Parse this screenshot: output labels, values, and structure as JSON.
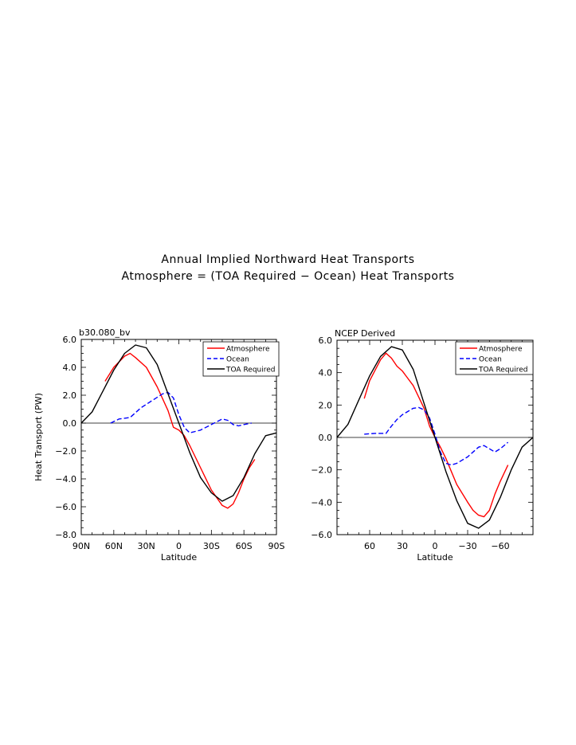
{
  "figure": {
    "title_line1": "Annual Implied Northward Heat Transports",
    "title_line2": "Atmosphere = (TOA Required − Ocean) Heat Transports"
  },
  "chart_data": [
    {
      "type": "line",
      "title": "b30.080_bv",
      "xlabel": "Latitude",
      "ylabel": "Heat Transport (PW)",
      "xlim": [
        90,
        -90
      ],
      "ylim": [
        -8,
        6
      ],
      "xticks": [
        90,
        60,
        30,
        0,
        -30,
        -60,
        -90
      ],
      "xtick_labels": [
        "90N",
        "60N",
        "30N",
        "0",
        "30S",
        "60S",
        "90S"
      ],
      "yticks": [
        6,
        4,
        2,
        0,
        -2,
        -4,
        -6,
        -8
      ],
      "ytick_labels": [
        "6.0",
        "4.0",
        "2.0",
        "0.0",
        "−2.0",
        "−4.0",
        "−6.0",
        "−8.0"
      ],
      "zero_line": true,
      "legend_position": "top-right",
      "series": [
        {
          "name": "Atmosphere",
          "color": "#ff0000",
          "dash": "solid",
          "x": [
            68,
            60,
            50,
            45,
            40,
            30,
            20,
            10,
            5,
            0,
            -5,
            -10,
            -20,
            -30,
            -40,
            -45,
            -50,
            -55,
            -60,
            -65,
            -70
          ],
          "y": [
            3.0,
            4.0,
            4.8,
            5.0,
            4.7,
            4.0,
            2.6,
            0.9,
            -0.3,
            -0.5,
            -0.9,
            -1.6,
            -3.2,
            -4.8,
            -5.9,
            -6.1,
            -5.8,
            -5.0,
            -4.0,
            -3.2,
            -2.6
          ]
        },
        {
          "name": "Ocean",
          "color": "#0000ff",
          "dash": "dashed",
          "x": [
            63,
            55,
            45,
            35,
            25,
            15,
            10,
            5,
            0,
            -5,
            -10,
            -20,
            -30,
            -40,
            -45,
            -50,
            -55,
            -60,
            -67
          ],
          "y": [
            0.0,
            0.3,
            0.4,
            1.1,
            1.6,
            2.1,
            2.2,
            1.8,
            0.6,
            -0.3,
            -0.7,
            -0.5,
            -0.1,
            0.3,
            0.2,
            -0.1,
            -0.2,
            -0.1,
            0.0
          ]
        },
        {
          "name": "TOA Required",
          "color": "#000000",
          "dash": "solid",
          "x": [
            90,
            80,
            70,
            60,
            50,
            40,
            30,
            20,
            10,
            0,
            -10,
            -20,
            -30,
            -40,
            -50,
            -60,
            -70,
            -80,
            -90
          ],
          "y": [
            0.0,
            0.8,
            2.3,
            3.8,
            5.0,
            5.6,
            5.4,
            4.2,
            2.1,
            0.0,
            -2.1,
            -3.9,
            -5.0,
            -5.6,
            -5.2,
            -3.9,
            -2.2,
            -0.9,
            -0.7
          ]
        }
      ]
    },
    {
      "type": "line",
      "title": "NCEP Derived",
      "xlabel": "Latitude",
      "ylabel": "",
      "xlim": [
        90,
        -90
      ],
      "ylim": [
        -6,
        6
      ],
      "xticks": [
        60,
        30,
        0,
        -30,
        -60
      ],
      "xtick_labels": [
        "60",
        "30",
        "0",
        "−30",
        "−60"
      ],
      "yticks": [
        6,
        4,
        2,
        0,
        -2,
        -4,
        -6
      ],
      "ytick_labels": [
        "6.0",
        "4.0",
        "2.0",
        "0.0",
        "−2.0",
        "−4.0",
        "−6.0"
      ],
      "zero_line": true,
      "legend_position": "top-right",
      "series": [
        {
          "name": "Atmosphere",
          "color": "#ff0000",
          "dash": "solid",
          "x": [
            65,
            60,
            50,
            45,
            40,
            35,
            30,
            20,
            10,
            5,
            0,
            -5,
            -10,
            -15,
            -20,
            -30,
            -35,
            -40,
            -45,
            -50,
            -55,
            -60,
            -67
          ],
          "y": [
            2.4,
            3.5,
            4.8,
            5.2,
            4.9,
            4.4,
            4.1,
            3.2,
            1.8,
            0.7,
            0.0,
            -0.6,
            -1.3,
            -2.1,
            -2.9,
            -4.0,
            -4.5,
            -4.8,
            -4.9,
            -4.5,
            -3.5,
            -2.7,
            -1.7
          ]
        },
        {
          "name": "Ocean",
          "color": "#0000ff",
          "dash": "dashed",
          "x": [
            65,
            55,
            45,
            40,
            35,
            30,
            25,
            20,
            15,
            10,
            5,
            0,
            -5,
            -10,
            -15,
            -20,
            -30,
            -35,
            -40,
            -45,
            -50,
            -55,
            -60,
            -67
          ],
          "y": [
            0.2,
            0.25,
            0.25,
            0.7,
            1.1,
            1.4,
            1.6,
            1.8,
            1.85,
            1.7,
            1.2,
            0.2,
            -0.9,
            -1.6,
            -1.7,
            -1.6,
            -1.2,
            -0.9,
            -0.6,
            -0.5,
            -0.7,
            -0.9,
            -0.7,
            -0.3
          ]
        },
        {
          "name": "TOA Required",
          "color": "#000000",
          "dash": "solid",
          "x": [
            90,
            80,
            70,
            60,
            50,
            40,
            30,
            20,
            10,
            0,
            -10,
            -20,
            -30,
            -40,
            -50,
            -60,
            -70,
            -80,
            -90
          ],
          "y": [
            0.0,
            0.8,
            2.3,
            3.8,
            5.0,
            5.6,
            5.4,
            4.2,
            2.1,
            0.0,
            -2.1,
            -3.9,
            -5.3,
            -5.6,
            -5.1,
            -3.7,
            -2.0,
            -0.6,
            0.0
          ]
        }
      ]
    }
  ]
}
